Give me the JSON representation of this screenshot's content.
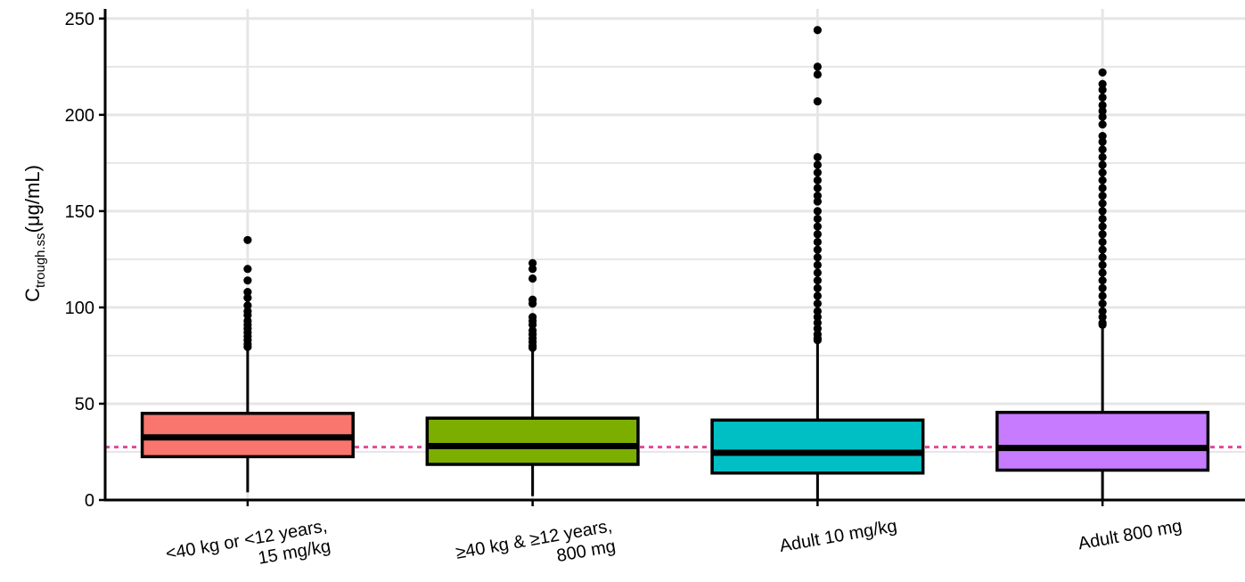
{
  "chart_data": {
    "type": "boxplot",
    "ylabel": {
      "main": "C",
      "subscript": "trough.ss",
      "unit": "(μg/mL)"
    },
    "ylim": [
      0,
      255
    ],
    "yticks": [
      0,
      50,
      100,
      150,
      200,
      250
    ],
    "grid": true,
    "reference_line": {
      "y": 27.5,
      "style": "dotted",
      "color": "#e0489a"
    },
    "groups": [
      {
        "label_lines": [
          "<40 kg or <12 years,",
          "15 mg/kg"
        ],
        "color": "#f8766d",
        "whisker_low": 4,
        "q1": 22.5,
        "median": 32.5,
        "q3": 45,
        "whisker_high": 78,
        "outliers": [
          135,
          120,
          114,
          108,
          105,
          101,
          98,
          96,
          93,
          91,
          89,
          87,
          85,
          83,
          81,
          79.5
        ]
      },
      {
        "label_lines": [
          "≥40 kg & ≥12 years,",
          "800 mg"
        ],
        "color": "#7cae00",
        "whisker_low": 2,
        "q1": 18.5,
        "median": 28,
        "q3": 42.5,
        "whisker_high": 78,
        "outliers": [
          123,
          120,
          115,
          104,
          102,
          95,
          93,
          91,
          88,
          86,
          84,
          82,
          80,
          79
        ]
      },
      {
        "label_lines": [
          "Adult 10 mg/kg"
        ],
        "color": "#00bfc4",
        "whisker_low": 0,
        "q1": 14,
        "median": 24.5,
        "q3": 41.5,
        "whisker_high": 82,
        "outliers": [
          244,
          225,
          221,
          207,
          178,
          174,
          170,
          166,
          162,
          158,
          155,
          150,
          146,
          142,
          138,
          134,
          130,
          126,
          122,
          118,
          114,
          110,
          106,
          102,
          98,
          95,
          92,
          89,
          86,
          84,
          83
        ]
      },
      {
        "label_lines": [
          "Adult 800 mg"
        ],
        "color": "#c77cff",
        "whisker_low": 0,
        "q1": 15.5,
        "median": 27,
        "q3": 45.5,
        "whisker_high": 90,
        "outliers": [
          222,
          216,
          213,
          209,
          205,
          202,
          199,
          195,
          189,
          186,
          182,
          178,
          174,
          170,
          166,
          162,
          158,
          154,
          150,
          146,
          142,
          138,
          134,
          130,
          126,
          122,
          118,
          114,
          110,
          106,
          102,
          98,
          95,
          92,
          91
        ]
      }
    ]
  }
}
